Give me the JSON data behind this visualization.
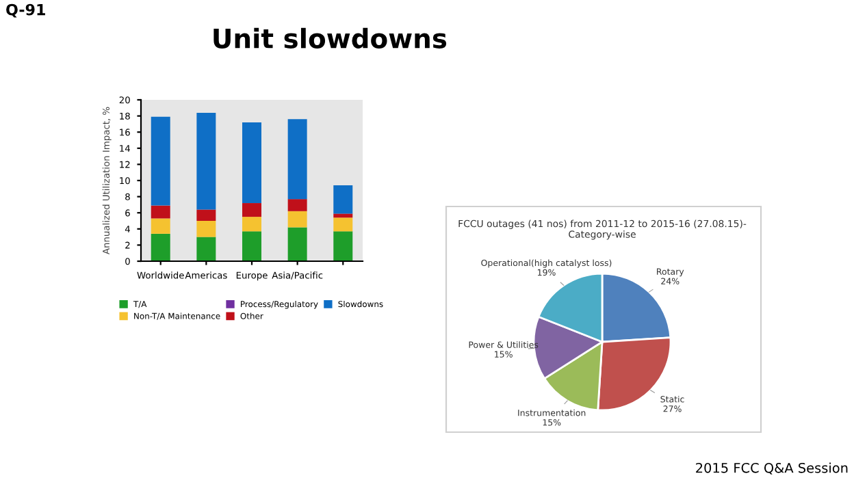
{
  "chart_data": [
    {
      "type": "bar",
      "title": "Unit slowdowns",
      "ylabel": "Annualized Utilization Impact, %",
      "categories": [
        "Worldwide",
        "Americas",
        "Europe",
        "Asia/Pacific",
        null
      ],
      "stacked": true,
      "series": [
        {
          "name": "T/A",
          "color": "#1e9e2a",
          "values": [
            3.4,
            3.0,
            3.7,
            4.2,
            3.7
          ]
        },
        {
          "name": "Non-T/A Maintenance",
          "color": "#f5c230",
          "values": [
            1.9,
            2.0,
            1.8,
            2.0,
            1.7
          ]
        },
        {
          "name": "Process/Regulatory",
          "color": "#7030a0",
          "values": [
            0,
            0,
            0,
            0,
            0
          ]
        },
        {
          "name": "Other",
          "color": "#c0101a",
          "values": [
            1.6,
            1.4,
            1.7,
            1.5,
            0.5
          ]
        },
        {
          "name": "Slowdowns",
          "color": "#0f6fc6",
          "values": [
            11.0,
            12.0,
            10.0,
            9.9,
            3.5
          ]
        }
      ],
      "ylim": [
        0,
        20
      ],
      "yticks": [
        0,
        2,
        4,
        6,
        8,
        10,
        12,
        14,
        16,
        18,
        20
      ],
      "grid": false,
      "legend": "bottom",
      "annotations": [
        "Q-91",
        "2015 FCC Q&A Session"
      ]
    },
    {
      "type": "pie",
      "title": "FCCU outages (41 nos) from 2011-12 to 2015-16 (27.08.15)-\nCategory-wise",
      "categories": [
        "Rotary",
        "Static",
        "Instrumentation",
        "Power & Utilities",
        "Operational(high catalyst loss)"
      ],
      "values": [
        24,
        27,
        15,
        15,
        19
      ],
      "value_labels": [
        "24%",
        "27%",
        "15%",
        "15%",
        "19%"
      ],
      "colors": [
        "#4f81bd",
        "#c0504d",
        "#9bbb59",
        "#8064a2",
        "#4bacc6"
      ]
    }
  ]
}
